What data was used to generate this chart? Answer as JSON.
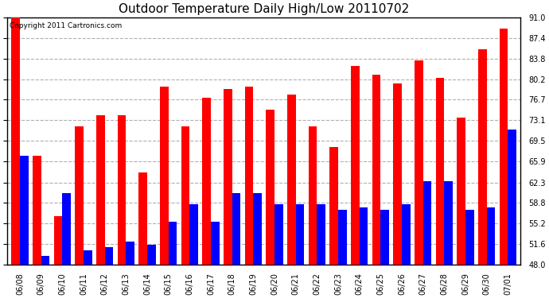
{
  "title": "Outdoor Temperature Daily High/Low 20110702",
  "copyright": "Copyright 2011 Cartronics.com",
  "dates": [
    "06/08",
    "06/09",
    "06/10",
    "06/11",
    "06/12",
    "06/13",
    "06/14",
    "06/15",
    "06/16",
    "06/17",
    "06/18",
    "06/19",
    "06/20",
    "06/21",
    "06/22",
    "06/23",
    "06/24",
    "06/25",
    "06/26",
    "06/27",
    "06/28",
    "06/29",
    "06/30",
    "07/01"
  ],
  "highs": [
    91.0,
    67.0,
    56.5,
    72.0,
    74.0,
    74.0,
    64.0,
    79.0,
    72.0,
    77.0,
    78.5,
    79.0,
    75.0,
    77.5,
    72.0,
    68.5,
    82.5,
    81.0,
    79.5,
    83.5,
    80.5,
    73.5,
    85.5,
    89.0
  ],
  "lows": [
    67.0,
    49.5,
    60.5,
    50.5,
    51.0,
    52.0,
    51.5,
    55.5,
    58.5,
    55.5,
    60.5,
    60.5,
    58.5,
    58.5,
    58.5,
    57.5,
    58.0,
    57.5,
    58.5,
    62.5,
    62.5,
    57.5,
    58.0,
    71.5
  ],
  "high_color": "#ff0000",
  "low_color": "#0000ff",
  "bg_color": "#ffffff",
  "grid_color": "#b0b0b0",
  "ymin": 48.0,
  "ymax": 91.0,
  "yticks": [
    48.0,
    51.6,
    55.2,
    58.8,
    62.3,
    65.9,
    69.5,
    73.1,
    76.7,
    80.2,
    83.8,
    87.4,
    91.0
  ],
  "bar_width": 0.4,
  "title_fontsize": 11,
  "tick_fontsize": 7,
  "copyright_fontsize": 6.5
}
